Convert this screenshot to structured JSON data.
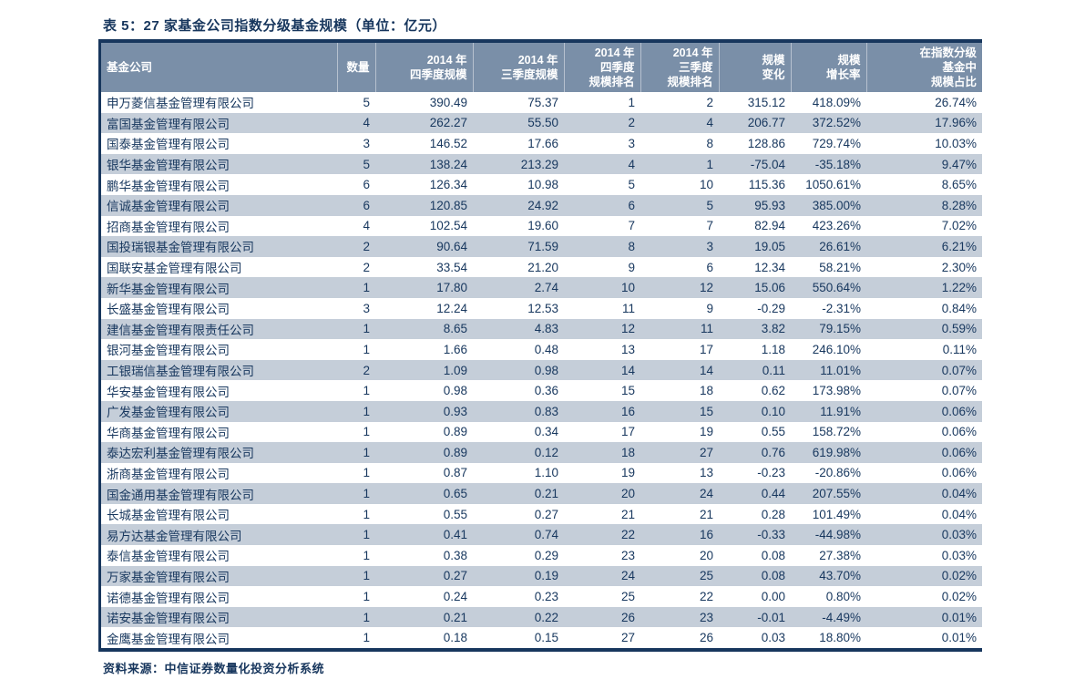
{
  "title": "表 5：27 家基金公司指数分级基金规模（单位：亿元）",
  "source": "资料来源：中信证券数量化投资分析系统",
  "colors": {
    "navy": "#17365d",
    "header_bg": "#7a8fa8",
    "band_row_bg": "#c5ced9",
    "text": "#17375e"
  },
  "table": {
    "columns": [
      {
        "key": "company",
        "label": "基金公司"
      },
      {
        "key": "count",
        "label": "数量"
      },
      {
        "key": "q4_2014_scale",
        "label": "2014 年\n四季度规模"
      },
      {
        "key": "q3_2014_scale",
        "label": "2014 年\n三季度规模"
      },
      {
        "key": "q4_2014_rank",
        "label": "2014 年\n四季度\n规模排名"
      },
      {
        "key": "q3_2014_rank",
        "label": "2014 年\n三季度\n规模排名"
      },
      {
        "key": "scale_change",
        "label": "规模\n变化"
      },
      {
        "key": "scale_growth_rate",
        "label": "规模\n增长率"
      },
      {
        "key": "share_in_graded_index_funds",
        "label": "在指数分级\n基金中\n规模占比"
      }
    ],
    "rows": [
      [
        "申万菱信基金管理有限公司",
        "5",
        "390.49",
        "75.37",
        "1",
        "2",
        "315.12",
        "418.09%",
        "26.74%"
      ],
      [
        "富国基金管理有限公司",
        "4",
        "262.27",
        "55.50",
        "2",
        "4",
        "206.77",
        "372.52%",
        "17.96%"
      ],
      [
        "国泰基金管理有限公司",
        "3",
        "146.52",
        "17.66",
        "3",
        "8",
        "128.86",
        "729.74%",
        "10.03%"
      ],
      [
        "银华基金管理有限公司",
        "5",
        "138.24",
        "213.29",
        "4",
        "1",
        "-75.04",
        "-35.18%",
        "9.47%"
      ],
      [
        "鹏华基金管理有限公司",
        "6",
        "126.34",
        "10.98",
        "5",
        "10",
        "115.36",
        "1050.61%",
        "8.65%"
      ],
      [
        "信诚基金管理有限公司",
        "6",
        "120.85",
        "24.92",
        "6",
        "5",
        "95.93",
        "385.00%",
        "8.28%"
      ],
      [
        "招商基金管理有限公司",
        "4",
        "102.54",
        "19.60",
        "7",
        "7",
        "82.94",
        "423.26%",
        "7.02%"
      ],
      [
        "国投瑞银基金管理有限公司",
        "2",
        "90.64",
        "71.59",
        "8",
        "3",
        "19.05",
        "26.61%",
        "6.21%"
      ],
      [
        "国联安基金管理有限公司",
        "2",
        "33.54",
        "21.20",
        "9",
        "6",
        "12.34",
        "58.21%",
        "2.30%"
      ],
      [
        "新华基金管理有限公司",
        "1",
        "17.80",
        "2.74",
        "10",
        "12",
        "15.06",
        "550.64%",
        "1.22%"
      ],
      [
        "长盛基金管理有限公司",
        "3",
        "12.24",
        "12.53",
        "11",
        "9",
        "-0.29",
        "-2.31%",
        "0.84%"
      ],
      [
        "建信基金管理有限责任公司",
        "1",
        "8.65",
        "4.83",
        "12",
        "11",
        "3.82",
        "79.15%",
        "0.59%"
      ],
      [
        "银河基金管理有限公司",
        "1",
        "1.66",
        "0.48",
        "13",
        "17",
        "1.18",
        "246.10%",
        "0.11%"
      ],
      [
        "工银瑞信基金管理有限公司",
        "2",
        "1.09",
        "0.98",
        "14",
        "14",
        "0.11",
        "11.01%",
        "0.07%"
      ],
      [
        "华安基金管理有限公司",
        "1",
        "0.98",
        "0.36",
        "15",
        "18",
        "0.62",
        "173.98%",
        "0.07%"
      ],
      [
        "广发基金管理有限公司",
        "1",
        "0.93",
        "0.83",
        "16",
        "15",
        "0.10",
        "11.91%",
        "0.06%"
      ],
      [
        "华商基金管理有限公司",
        "1",
        "0.89",
        "0.34",
        "17",
        "19",
        "0.55",
        "158.72%",
        "0.06%"
      ],
      [
        "泰达宏利基金管理有限公司",
        "1",
        "0.89",
        "0.12",
        "18",
        "27",
        "0.76",
        "619.98%",
        "0.06%"
      ],
      [
        "浙商基金管理有限公司",
        "1",
        "0.87",
        "1.10",
        "19",
        "13",
        "-0.23",
        "-20.86%",
        "0.06%"
      ],
      [
        "国金通用基金管理有限公司",
        "1",
        "0.65",
        "0.21",
        "20",
        "24",
        "0.44",
        "207.55%",
        "0.04%"
      ],
      [
        "长城基金管理有限公司",
        "1",
        "0.55",
        "0.27",
        "21",
        "21",
        "0.28",
        "101.49%",
        "0.04%"
      ],
      [
        "易方达基金管理有限公司",
        "1",
        "0.41",
        "0.74",
        "22",
        "16",
        "-0.33",
        "-44.98%",
        "0.03%"
      ],
      [
        "泰信基金管理有限公司",
        "1",
        "0.38",
        "0.29",
        "23",
        "20",
        "0.08",
        "27.38%",
        "0.03%"
      ],
      [
        "万家基金管理有限公司",
        "1",
        "0.27",
        "0.19",
        "24",
        "25",
        "0.08",
        "43.70%",
        "0.02%"
      ],
      [
        "诺德基金管理有限公司",
        "1",
        "0.24",
        "0.23",
        "25",
        "22",
        "0.00",
        "0.80%",
        "0.02%"
      ],
      [
        "诺安基金管理有限公司",
        "1",
        "0.21",
        "0.22",
        "26",
        "23",
        "-0.01",
        "-4.49%",
        "0.01%"
      ],
      [
        "金鹰基金管理有限公司",
        "1",
        "0.18",
        "0.15",
        "27",
        "26",
        "0.03",
        "18.80%",
        "0.01%"
      ]
    ]
  }
}
